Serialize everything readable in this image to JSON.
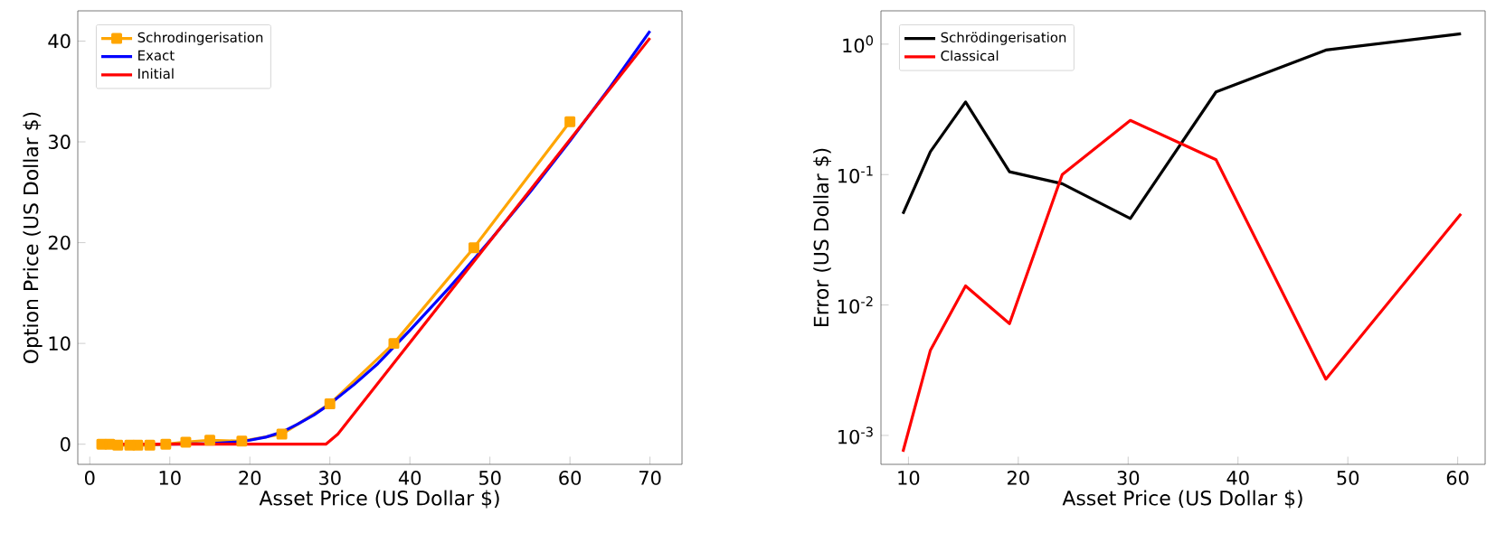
{
  "chart_data": [
    {
      "type": "line",
      "xlabel": "Asset Price (US Dollar $)",
      "ylabel": "Option Price (US Dollar $)",
      "xlim": [
        -1.5,
        74
      ],
      "ylim": [
        -2,
        43
      ],
      "xticks": [
        0,
        10,
        20,
        30,
        40,
        50,
        60,
        70
      ],
      "yticks": [
        0,
        10,
        20,
        30,
        40
      ],
      "legend": "top left",
      "grid": false,
      "series": [
        {
          "name": "Schrodingerisation",
          "color": "#ffa500",
          "marker": "square",
          "x": [
            1.5,
            2.5,
            3.5,
            5,
            6,
            7.5,
            9.5,
            12,
            15,
            19,
            24,
            30,
            38,
            48,
            60
          ],
          "values": [
            0,
            0,
            -0.1,
            -0.1,
            -0.1,
            -0.1,
            0,
            0.2,
            0.4,
            0.3,
            1.0,
            4.0,
            10.0,
            19.5,
            32
          ]
        },
        {
          "name": "Exact",
          "color": "#0000ff",
          "marker": "none",
          "x": [
            1.5,
            10,
            15,
            18,
            20,
            22,
            24,
            26,
            28,
            30,
            33,
            36,
            40,
            45,
            50,
            55,
            60,
            65,
            70
          ],
          "values": [
            0,
            0,
            0.05,
            0.2,
            0.4,
            0.7,
            1.2,
            2.0,
            2.9,
            4.0,
            5.9,
            8.0,
            11.3,
            15.6,
            20.2,
            25.0,
            30.1,
            35.4,
            41
          ]
        },
        {
          "name": "Initial",
          "color": "#ff0000",
          "marker": "none",
          "x": [
            1.5,
            29.5,
            31,
            70
          ],
          "values": [
            0,
            0,
            1,
            40.3
          ]
        }
      ]
    },
    {
      "type": "line",
      "log": "y",
      "xlabel": "Asset Price (US Dollar $)",
      "ylabel": "Error (US Dollar $)",
      "xlim": [
        7.5,
        62.5
      ],
      "ylim": [
        0.0006,
        1.8
      ],
      "xticks": [
        10,
        20,
        30,
        40,
        50,
        60
      ],
      "yticks": [
        {
          "value": 0.001,
          "label": "10$^{-3}$"
        },
        {
          "value": 0.01,
          "label": "10$^{-2}$"
        },
        {
          "value": 0.1,
          "label": "10$^{-1}$"
        },
        {
          "value": 1,
          "label": "10$^{0}$"
        }
      ],
      "legend": "top left",
      "grid": false,
      "series": [
        {
          "name": "Schrödingerisation",
          "color": "#000000",
          "x": [
            9.5,
            12,
            15.2,
            19.2,
            24,
            30.2,
            38,
            48,
            60.3
          ],
          "values": [
            0.05,
            0.15,
            0.36,
            0.105,
            0.085,
            0.046,
            0.43,
            0.9,
            1.2
          ]
        },
        {
          "name": "Classical",
          "color": "#ff0000",
          "x": [
            9.5,
            12,
            15.2,
            19.2,
            24,
            30.2,
            38,
            48,
            60.3
          ],
          "values": [
            0.00075,
            0.0045,
            0.014,
            0.0072,
            0.1,
            0.26,
            0.13,
            0.0027,
            0.05
          ]
        }
      ]
    }
  ]
}
